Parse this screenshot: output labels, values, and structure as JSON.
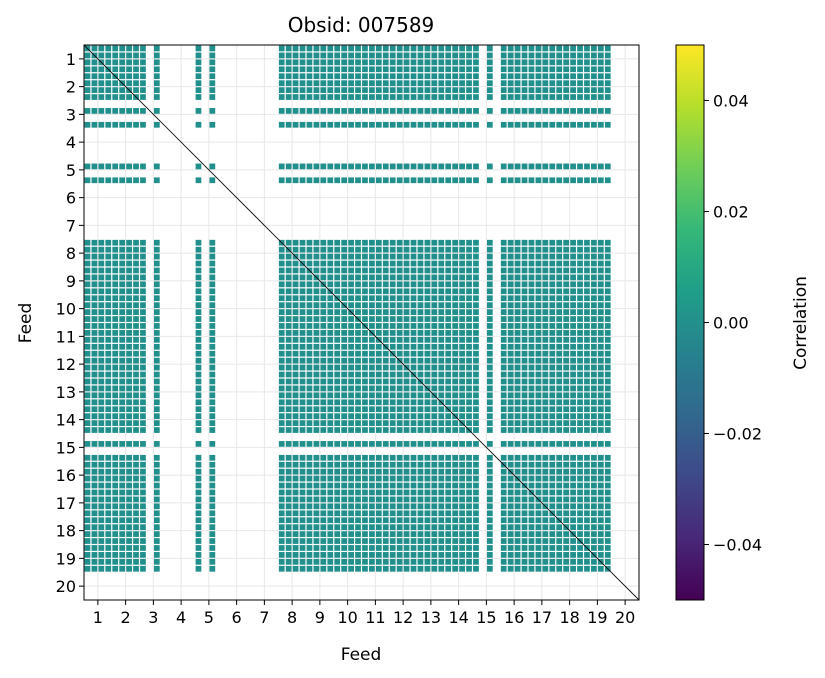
{
  "chart_data": {
    "type": "heatmap",
    "title": "Obsid: 007589",
    "xlabel": "Feed",
    "ylabel": "Feed",
    "feeds": [
      1,
      2,
      3,
      4,
      5,
      6,
      7,
      8,
      9,
      10,
      11,
      12,
      13,
      14,
      15,
      16,
      17,
      18,
      19,
      20
    ],
    "x_ticks": [
      "1",
      "2",
      "3",
      "4",
      "5",
      "6",
      "7",
      "8",
      "9",
      "10",
      "11",
      "12",
      "13",
      "14",
      "15",
      "16",
      "17",
      "18",
      "19",
      "20"
    ],
    "y_ticks": [
      "1",
      "2",
      "3",
      "4",
      "5",
      "6",
      "7",
      "8",
      "9",
      "10",
      "11",
      "12",
      "13",
      "14",
      "15",
      "16",
      "17",
      "18",
      "19",
      "20"
    ],
    "value_range": [
      -0.05,
      0.05
    ],
    "typical_value": 0.0,
    "active_feeds": [
      1,
      2,
      3,
      5,
      8,
      9,
      10,
      11,
      12,
      13,
      14,
      15,
      16,
      17,
      18,
      19
    ],
    "inactive_feeds": [
      4,
      6,
      7,
      20
    ],
    "partial_feeds": [
      3,
      5,
      15
    ],
    "grid": true,
    "colorbar": {
      "label": "Correlation",
      "ticks": [
        0.04,
        0.02,
        0.0,
        -0.02,
        -0.04
      ],
      "tick_labels": [
        "0.04",
        "0.02",
        "0.00",
        "−0.02",
        "−0.04"
      ],
      "colormap": "viridis",
      "stops": [
        "#440154",
        "#482878",
        "#3e4989",
        "#31688e",
        "#26828e",
        "#1f9e89",
        "#35b779",
        "#6ece58",
        "#b5de2b",
        "#fde725"
      ]
    },
    "cell_color": "#21908d",
    "diagonal_color": "#000000"
  }
}
